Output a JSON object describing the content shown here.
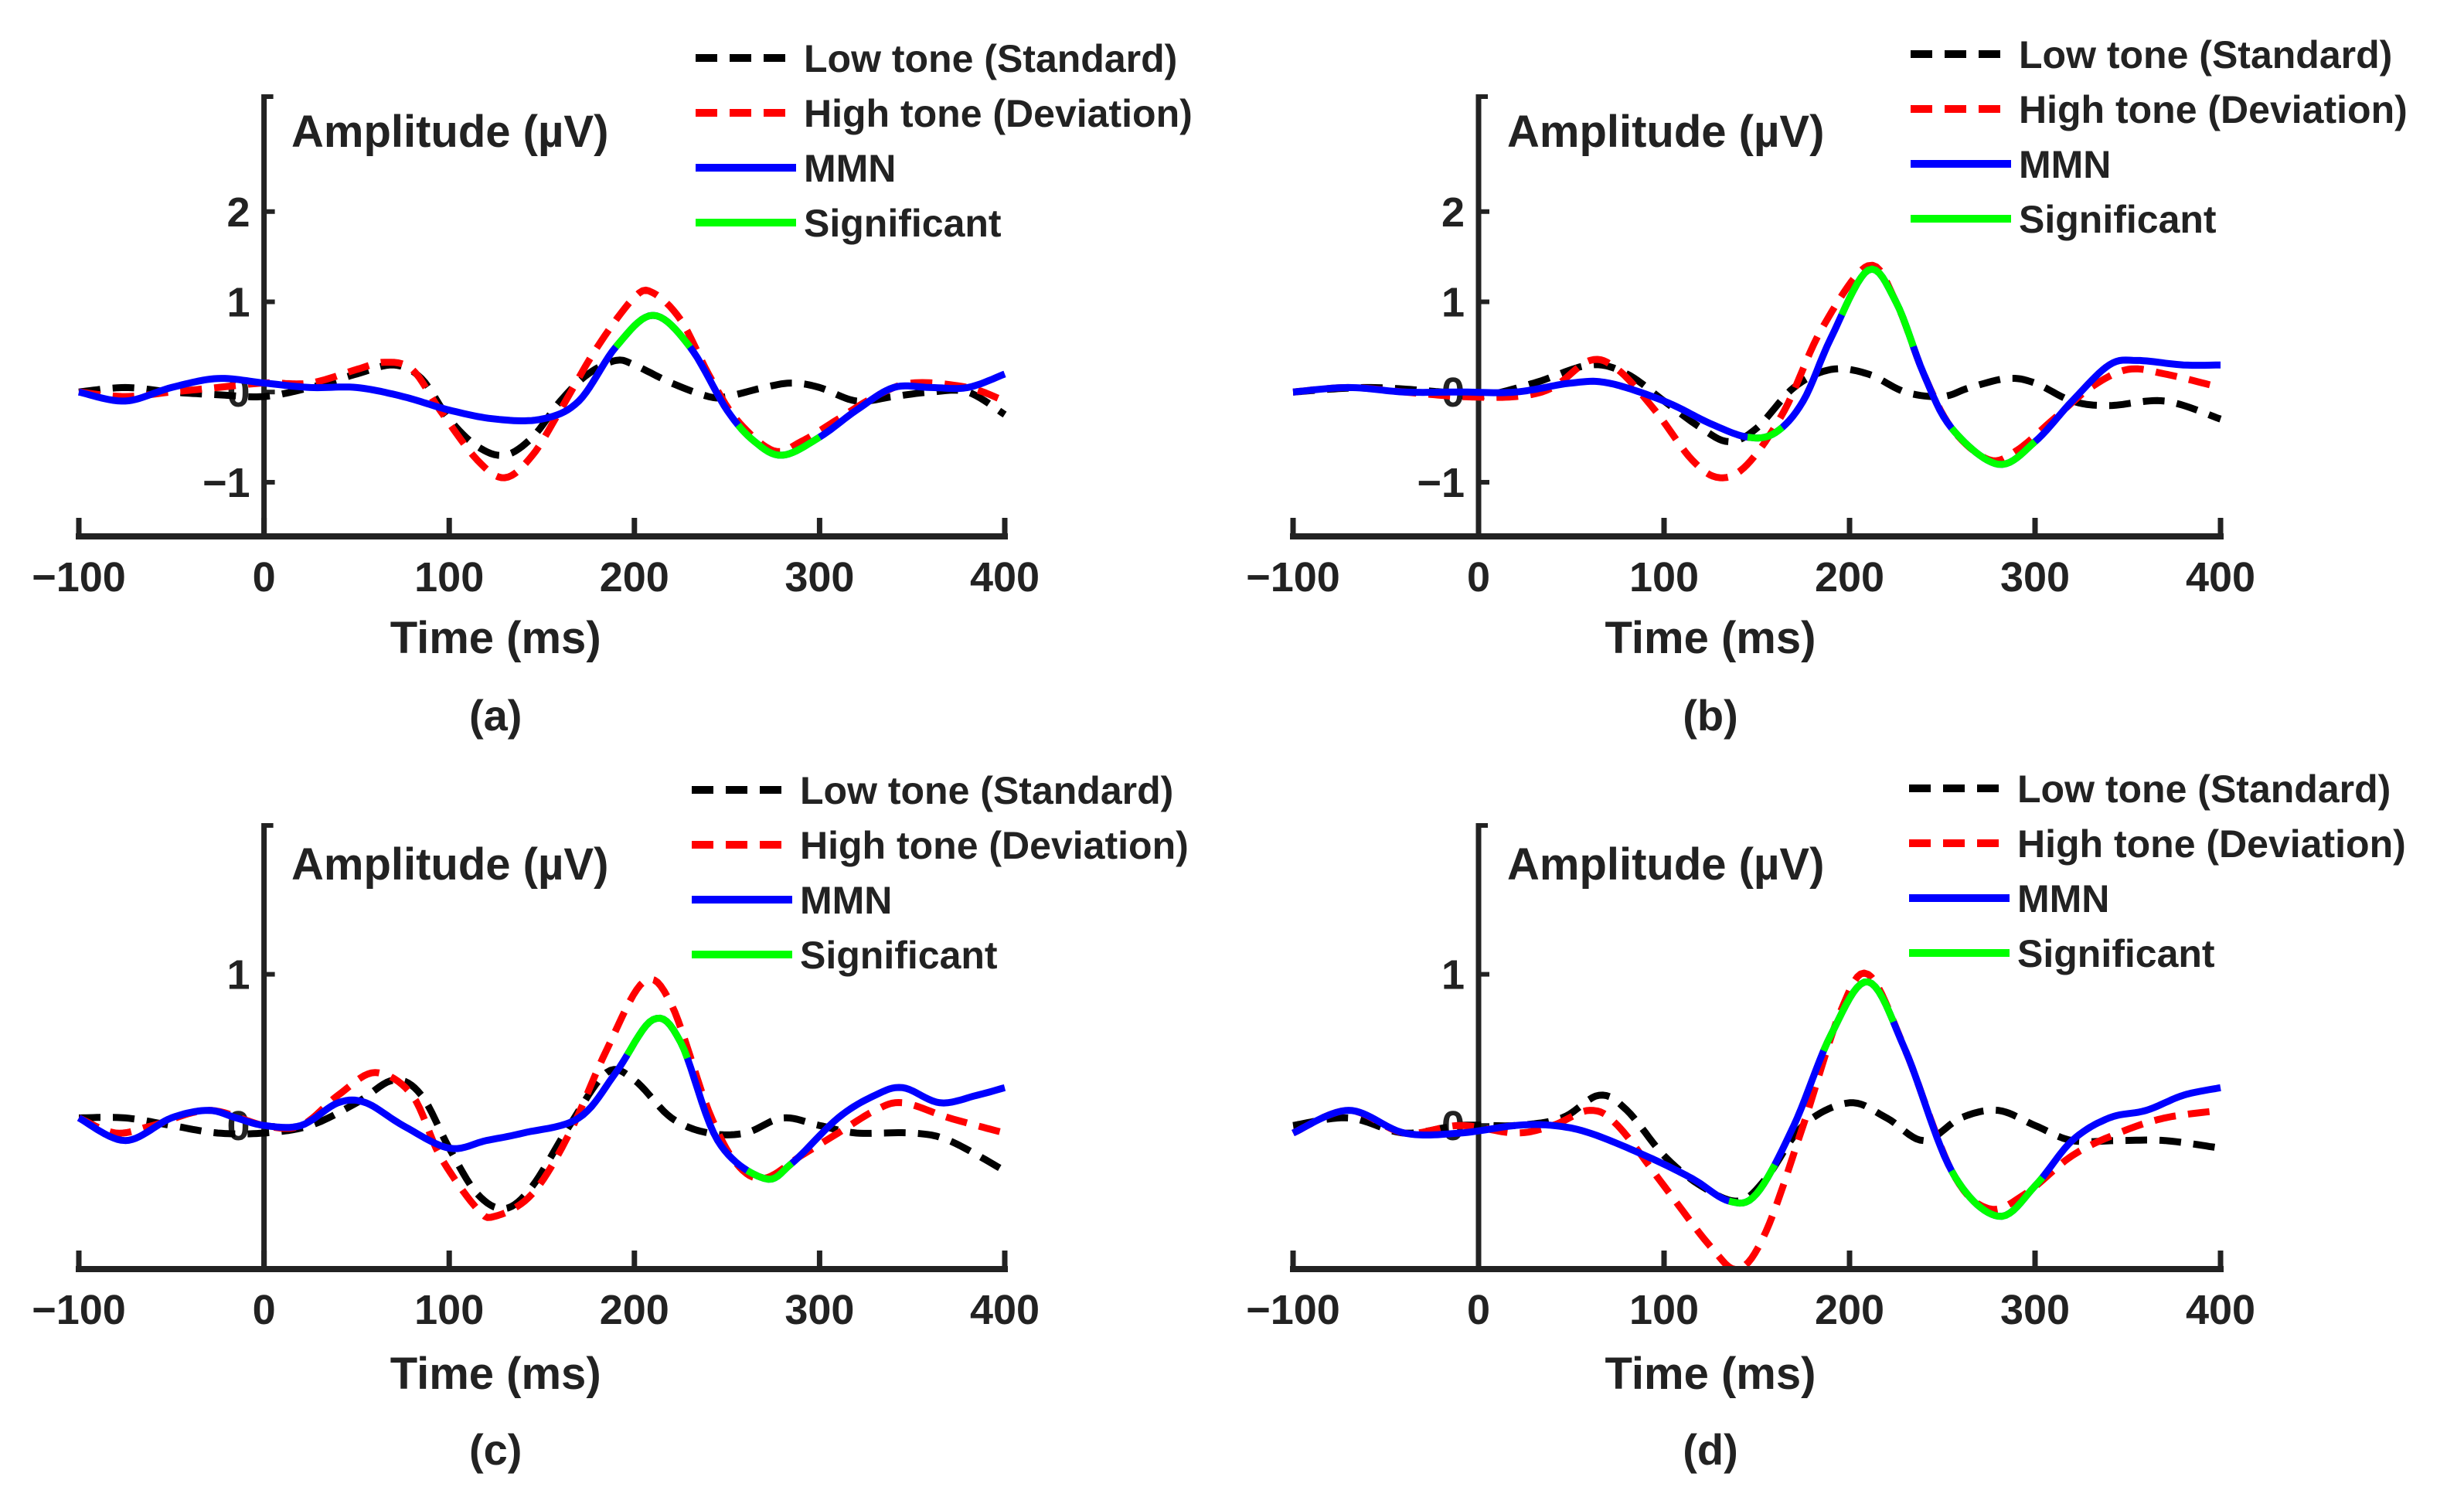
{
  "chart_data": [
    {
      "type": "line",
      "panel_label": "(a)",
      "xlabel": "Time (ms)",
      "ylabel": "Amplitude (µV)",
      "xlim": [
        -100,
        400
      ],
      "ylim": [
        -1.6,
        3.3
      ],
      "xticks": [
        -100,
        0,
        100,
        200,
        300,
        400
      ],
      "xtick_labels": [
        "−100",
        "0",
        "100",
        "200",
        "300",
        "400"
      ],
      "yticks": [
        -1,
        0,
        1,
        2
      ],
      "ytick_labels": [
        "−1",
        "0",
        "1",
        "2"
      ],
      "legend": [
        "Low tone (Standard)",
        "High tone (Deviation)",
        "MMN",
        "Significant"
      ],
      "legend_placement": "top-right",
      "series": [
        {
          "name": "Low tone (Standard)",
          "color": "#000000",
          "style": "dashed",
          "x": [
            -100,
            -75,
            -50,
            -25,
            0,
            25,
            50,
            70,
            85,
            100,
            115,
            130,
            145,
            160,
            175,
            190,
            200,
            220,
            240,
            250,
            270,
            285,
            300,
            320,
            340,
            360,
            380,
            400
          ],
          "y": [
            0,
            0.05,
            0,
            -0.03,
            -0.05,
            0.05,
            0.2,
            0.3,
            0.15,
            -0.3,
            -0.6,
            -0.7,
            -0.5,
            -0.1,
            0.2,
            0.35,
            0.3,
            0.1,
            -0.05,
            -0.05,
            0.05,
            0.1,
            0.05,
            -0.1,
            -0.05,
            0,
            0,
            -0.25
          ]
        },
        {
          "name": "High tone (Deviation)",
          "color": "#ff0000",
          "style": "dashed",
          "x": [
            -100,
            -75,
            -50,
            -25,
            0,
            25,
            50,
            65,
            80,
            95,
            115,
            130,
            145,
            160,
            180,
            200,
            210,
            225,
            240,
            255,
            275,
            290,
            310,
            330,
            350,
            380,
            400
          ],
          "y": [
            0,
            -0.05,
            0,
            0.05,
            0.1,
            0.1,
            0.25,
            0.33,
            0.25,
            -0.2,
            -0.75,
            -0.95,
            -0.7,
            -0.2,
            0.5,
            1.05,
            1.1,
            0.8,
            0.2,
            -0.3,
            -0.65,
            -0.55,
            -0.3,
            -0.05,
            0.1,
            0.05,
            -0.1
          ]
        },
        {
          "name": "MMN",
          "color": "#0000ff",
          "style": "solid",
          "x": [
            -100,
            -75,
            -50,
            -25,
            0,
            25,
            50,
            75,
            100,
            125,
            150,
            170,
            190,
            210,
            230,
            250,
            265,
            280,
            300,
            320,
            340,
            360,
            380,
            400
          ],
          "y": [
            0,
            -0.1,
            0.05,
            0.15,
            0.1,
            0.05,
            0.05,
            -0.05,
            -0.2,
            -0.3,
            -0.3,
            -0.1,
            0.5,
            0.85,
            0.5,
            -0.2,
            -0.55,
            -0.7,
            -0.5,
            -0.2,
            0.05,
            0.05,
            0.05,
            0.2
          ]
        }
      ],
      "significant_ranges": [
        [
          190,
          230
        ],
        [
          255,
          300
        ]
      ],
      "significant_color": "#00ff00"
    },
    {
      "type": "line",
      "panel_label": "(b)",
      "xlabel": "Time (ms)",
      "ylabel": "Amplitude (µV)",
      "xlim": [
        -100,
        400
      ],
      "ylim": [
        -1.6,
        3.3
      ],
      "xticks": [
        -100,
        0,
        100,
        200,
        300,
        400
      ],
      "xtick_labels": [
        "−100",
        "0",
        "100",
        "200",
        "300",
        "400"
      ],
      "yticks": [
        -1,
        0,
        1,
        2
      ],
      "ytick_labels": [
        "−1",
        "0",
        "1",
        "2"
      ],
      "legend": [
        "Low tone (Standard)",
        "High tone (Deviation)",
        "MMN",
        "Significant"
      ],
      "legend_placement": "top-right",
      "series": [
        {
          "name": "Low tone (Standard)",
          "color": "#000000",
          "style": "dashed",
          "x": [
            -100,
            -60,
            -20,
            0,
            30,
            60,
            80,
            100,
            120,
            135,
            150,
            170,
            190,
            210,
            230,
            250,
            265,
            285,
            300,
            320,
            340,
            370,
            400
          ],
          "y": [
            0,
            0.05,
            0,
            -0.05,
            0.1,
            0.3,
            0.2,
            -0.1,
            -0.4,
            -0.55,
            -0.4,
            0.05,
            0.25,
            0.2,
            0,
            -0.05,
            0.05,
            0.15,
            0.1,
            -0.1,
            -0.15,
            -0.1,
            -0.3
          ]
        },
        {
          "name": "High tone (Deviation)",
          "color": "#ff0000",
          "style": "dashed",
          "x": [
            -100,
            -70,
            -40,
            -10,
            20,
            40,
            60,
            75,
            95,
            115,
            130,
            145,
            165,
            185,
            210,
            225,
            240,
            255,
            275,
            290,
            310,
            330,
            350,
            370,
            400
          ],
          "y": [
            0,
            0.05,
            0,
            -0.05,
            -0.05,
            0.05,
            0.35,
            0.25,
            -0.2,
            -0.75,
            -0.95,
            -0.8,
            -0.2,
            0.7,
            1.4,
            1.0,
            0.2,
            -0.4,
            -0.75,
            -0.65,
            -0.3,
            0.05,
            0.25,
            0.2,
            0.05
          ]
        },
        {
          "name": "MMN",
          "color": "#0000ff",
          "style": "solid",
          "x": [
            -100,
            -70,
            -40,
            -10,
            20,
            50,
            70,
            100,
            125,
            145,
            160,
            175,
            190,
            210,
            225,
            240,
            255,
            280,
            300,
            320,
            340,
            355,
            380,
            400
          ],
          "y": [
            0,
            0.05,
            0,
            0,
            0,
            0.1,
            0.1,
            -0.1,
            -0.35,
            -0.5,
            -0.45,
            -0.1,
            0.6,
            1.35,
            1.0,
            0.2,
            -0.4,
            -0.8,
            -0.55,
            -0.1,
            0.3,
            0.35,
            0.3,
            0.3
          ]
        }
      ],
      "significant_ranges": [
        [
          145,
          165
        ],
        [
          195,
          235
        ],
        [
          255,
          300
        ]
      ],
      "significant_color": "#00ff00"
    },
    {
      "type": "line",
      "panel_label": "(c)",
      "xlabel": "Time (ms)",
      "ylabel": "Amplitude (µV)",
      "xlim": [
        -100,
        400
      ],
      "ylim": [
        -0.95,
        2.0
      ],
      "xticks": [
        -100,
        0,
        100,
        200,
        300,
        400
      ],
      "xtick_labels": [
        "−100",
        "0",
        "100",
        "200",
        "300",
        "400"
      ],
      "yticks": [
        0,
        1
      ],
      "ytick_labels": [
        "0",
        "1"
      ],
      "legend": [
        "Low tone (Standard)",
        "High tone (Deviation)",
        "MMN",
        "Significant"
      ],
      "legend_placement": "top-right",
      "series": [
        {
          "name": "Low tone (Standard)",
          "color": "#000000",
          "style": "dashed",
          "x": [
            -100,
            -75,
            -50,
            -25,
            0,
            25,
            50,
            70,
            85,
            100,
            115,
            130,
            145,
            165,
            185,
            200,
            220,
            240,
            260,
            280,
            300,
            320,
            350,
            370,
            400
          ],
          "y": [
            0.05,
            0.05,
            0,
            -0.05,
            -0.05,
            0,
            0.15,
            0.3,
            0.2,
            -0.15,
            -0.45,
            -0.55,
            -0.4,
            0,
            0.35,
            0.3,
            0.05,
            -0.05,
            -0.05,
            0.05,
            0,
            -0.05,
            -0.05,
            -0.1,
            -0.3
          ]
        },
        {
          "name": "High tone (Deviation)",
          "color": "#ff0000",
          "style": "dashed",
          "x": [
            -100,
            -80,
            -60,
            -30,
            0,
            20,
            40,
            60,
            80,
            95,
            115,
            125,
            145,
            165,
            185,
            205,
            220,
            240,
            255,
            270,
            290,
            310,
            330,
            345,
            370,
            400
          ],
          "y": [
            0.05,
            -0.05,
            0,
            0.1,
            0,
            0,
            0.2,
            0.35,
            0.2,
            -0.2,
            -0.55,
            -0.6,
            -0.45,
            -0.05,
            0.5,
            0.95,
            0.8,
            0.1,
            -0.25,
            -0.35,
            -0.2,
            -0.05,
            0.1,
            0.15,
            0.05,
            -0.05
          ]
        },
        {
          "name": "MMN",
          "color": "#0000ff",
          "style": "solid",
          "x": [
            -100,
            -75,
            -50,
            -30,
            -15,
            0,
            20,
            40,
            55,
            75,
            100,
            120,
            140,
            170,
            190,
            210,
            225,
            245,
            270,
            285,
            310,
            330,
            345,
            365,
            385,
            400
          ],
          "y": [
            0.05,
            -0.1,
            0.05,
            0.1,
            0.05,
            0,
            0,
            0.15,
            0.15,
            0,
            -0.15,
            -0.1,
            -0.05,
            0.05,
            0.35,
            0.7,
            0.55,
            -0.1,
            -0.35,
            -0.25,
            0.05,
            0.2,
            0.25,
            0.15,
            0.2,
            0.25
          ]
        }
      ],
      "significant_ranges": [
        [
          195,
          230
        ],
        [
          260,
          285
        ]
      ],
      "significant_color": "#00ff00"
    },
    {
      "type": "line",
      "panel_label": "(d)",
      "xlabel": "Time (ms)",
      "ylabel": "Amplitude (µV)",
      "xlim": [
        -100,
        400
      ],
      "ylim": [
        -0.95,
        2.0
      ],
      "xticks": [
        -100,
        0,
        100,
        200,
        300,
        400
      ],
      "xtick_labels": [
        "−100",
        "0",
        "100",
        "200",
        "300",
        "400"
      ],
      "yticks": [
        0,
        1
      ],
      "ytick_labels": [
        "0",
        "1"
      ],
      "legend": [
        "Low tone (Standard)",
        "High tone (Deviation)",
        "MMN",
        "Significant"
      ],
      "legend_placement": "top-right",
      "series": [
        {
          "name": "Low tone (Standard)",
          "color": "#000000",
          "style": "dashed",
          "x": [
            -100,
            -70,
            -40,
            -10,
            20,
            45,
            65,
            80,
            100,
            120,
            140,
            155,
            175,
            200,
            220,
            240,
            260,
            280,
            300,
            320,
            345,
            370,
            400
          ],
          "y": [
            0,
            0.05,
            -0.05,
            0,
            0,
            0.05,
            0.2,
            0.1,
            -0.2,
            -0.4,
            -0.5,
            -0.35,
            0,
            0.15,
            0.05,
            -0.1,
            0.05,
            0.1,
            0,
            -0.1,
            -0.1,
            -0.1,
            -0.15
          ]
        },
        {
          "name": "High tone (Deviation)",
          "color": "#ff0000",
          "style": "dashed",
          "x": [
            -100,
            -70,
            -40,
            -10,
            20,
            40,
            60,
            75,
            100,
            125,
            140,
            155,
            175,
            195,
            210,
            230,
            255,
            275,
            295,
            320,
            345,
            370,
            400
          ],
          "y": [
            -0.05,
            0.1,
            -0.05,
            0,
            -0.05,
            0,
            0.1,
            0,
            -0.4,
            -0.8,
            -0.95,
            -0.7,
            0,
            0.75,
            1.0,
            0.5,
            -0.3,
            -0.55,
            -0.45,
            -0.2,
            -0.05,
            0.05,
            0.1
          ]
        },
        {
          "name": "MMN",
          "color": "#0000ff",
          "style": "solid",
          "x": [
            -100,
            -70,
            -40,
            -10,
            20,
            40,
            60,
            90,
            115,
            135,
            150,
            170,
            190,
            210,
            230,
            255,
            280,
            300,
            320,
            340,
            360,
            380,
            400
          ],
          "y": [
            -0.05,
            0.1,
            -0.05,
            -0.05,
            0,
            0,
            -0.05,
            -0.2,
            -0.35,
            -0.5,
            -0.45,
            0,
            0.6,
            0.95,
            0.5,
            -0.3,
            -0.6,
            -0.4,
            -0.1,
            0.05,
            0.1,
            0.2,
            0.25
          ]
        }
      ],
      "significant_ranges": [
        [
          135,
          160
        ],
        [
          185,
          225
        ],
        [
          255,
          305
        ]
      ],
      "significant_color": "#00ff00"
    }
  ]
}
